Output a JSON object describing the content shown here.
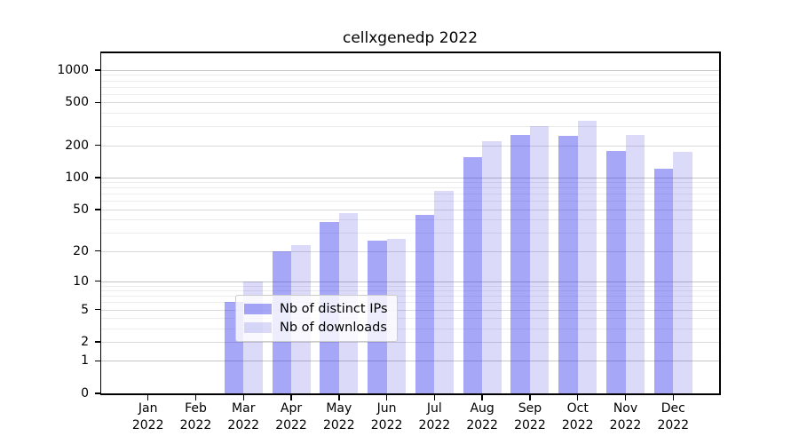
{
  "chart_data": {
    "type": "bar",
    "title": "cellxgenedp 2022",
    "year_label": "2022",
    "categories": [
      "Jan",
      "Feb",
      "Mar",
      "Apr",
      "May",
      "Jun",
      "Jul",
      "Aug",
      "Sep",
      "Oct",
      "Nov",
      "Dec"
    ],
    "series": [
      {
        "name": "Nb of distinct IPs",
        "color": "rgba(45,45,235,0.42)",
        "values": [
          0,
          0,
          6,
          20,
          38,
          25,
          44,
          155,
          250,
          243,
          176,
          121
        ]
      },
      {
        "name": "Nb of downloads",
        "color": "rgba(30,30,220,0.16)",
        "values": [
          0,
          0,
          10,
          23,
          46,
          26,
          74,
          220,
          300,
          335,
          250,
          172
        ]
      }
    ],
    "yticks": [
      0,
      1,
      2,
      5,
      10,
      20,
      50,
      100,
      200,
      500,
      1000
    ],
    "ylim": [
      0,
      1460
    ],
    "scale": "log1p",
    "grid": "horizontal",
    "grid_colors": {
      "decade": "#c6c6c6",
      "labeled": "#dadada",
      "minor": "#ececec"
    },
    "legend_position": "lower-center"
  }
}
